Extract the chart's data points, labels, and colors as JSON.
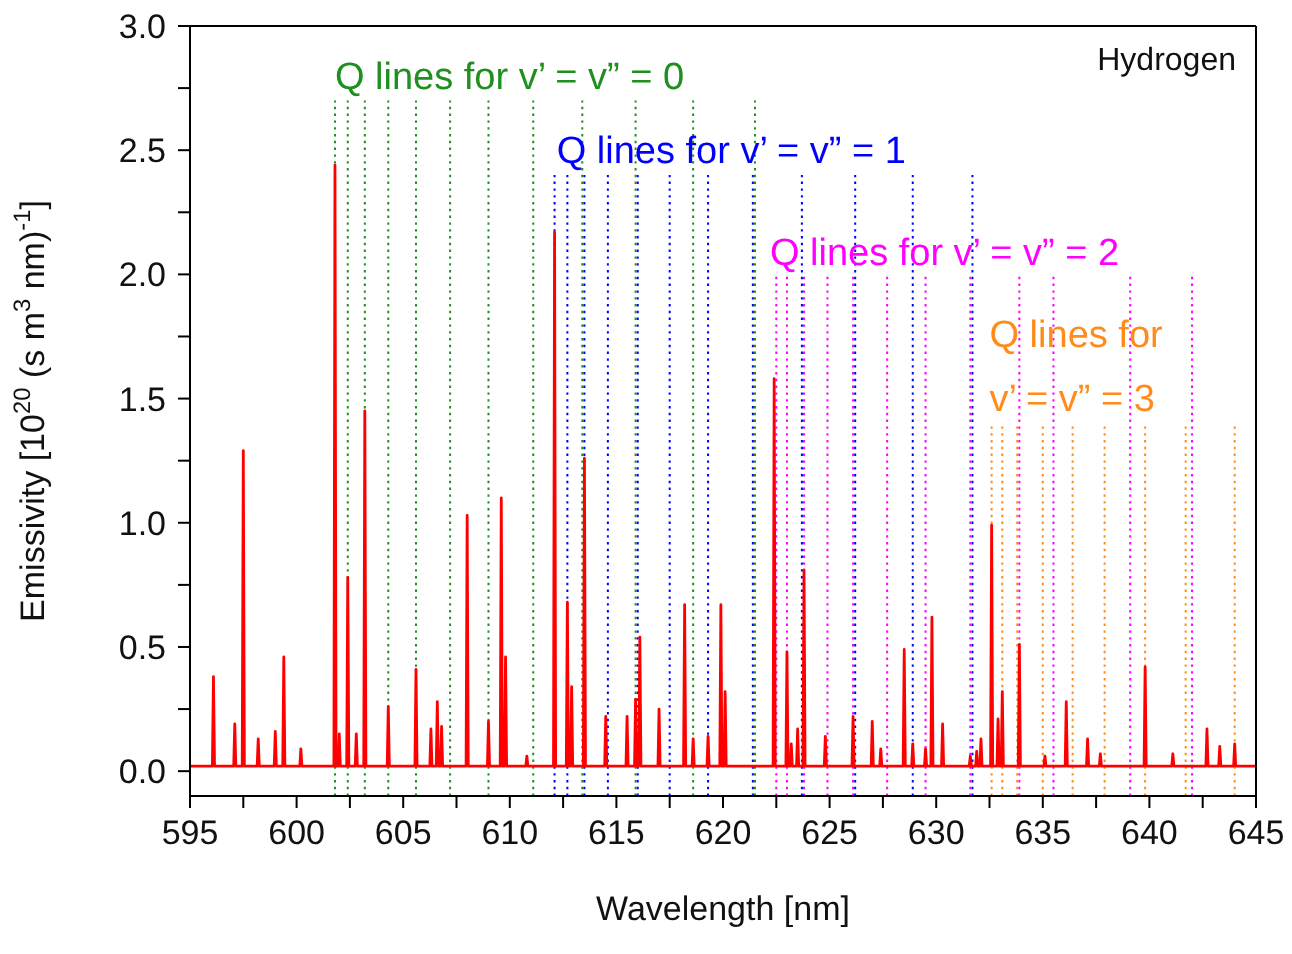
{
  "chart_data": {
    "type": "line",
    "xlabel": "Wavelength [nm]",
    "ylabel": "Emissivity [10$^{20}$ (s m$^{3}$ nm)$^{-1}$]",
    "xlim": [
      595,
      645
    ],
    "xticks": [
      595,
      {
        "value": 597.5,
        "label": null
      },
      600,
      {
        "value": 602.5,
        "label": null
      },
      605,
      {
        "value": 607.5,
        "label": null
      },
      610,
      {
        "value": 612.5,
        "label": null
      },
      615,
      {
        "value": 617.5,
        "label": null
      },
      620,
      {
        "value": 622.5,
        "label": null
      },
      625,
      {
        "value": 627.5,
        "label": null
      },
      630,
      {
        "value": 632.5,
        "label": null
      },
      635,
      {
        "value": 637.5,
        "label": null
      },
      640,
      {
        "value": 642.5,
        "label": null
      },
      645
    ],
    "ylim": [
      -0.1,
      3.0
    ],
    "yticks": [
      {
        "value": 0,
        "label": "0.0"
      },
      {
        "value": 0.25,
        "label": null
      },
      {
        "value": 0.5,
        "label": "0.5"
      },
      {
        "value": 0.75,
        "label": null
      },
      {
        "value": 1,
        "label": "1.0"
      },
      {
        "value": 1.25,
        "label": null
      },
      {
        "value": 1.5,
        "label": "1.5"
      },
      {
        "value": 1.75,
        "label": null
      },
      {
        "value": 2,
        "label": "2.0"
      },
      {
        "value": 2.25,
        "label": null
      },
      {
        "value": 2.5,
        "label": "2.5"
      },
      {
        "value": 2.75,
        "label": null
      },
      {
        "value": 3,
        "label": "3.0"
      }
    ],
    "annotations": [
      "Hydrogen",
      {
        "text": "Q lines for v’ = v” = 0",
        "x": 601.8,
        "y": 2.7
      },
      {
        "text": "Q lines for v’ = v” = 1",
        "x": 612.2,
        "y": 2.4
      },
      {
        "text": "Q lines for v’ = v” = 2",
        "x": 622.2,
        "y": 1.99
      },
      {
        "text": "Q lines for\nv’ = v” = 3",
        "x": 632.5,
        "y": 1.4
      }
    ],
    "ref_lines": [
      {
        "axis": "x",
        "value": 601.8,
        "label": null,
        "color": "#1f8f1f",
        "line_style": "dotted"
      },
      {
        "axis": "x",
        "value": 602.4,
        "label": null,
        "color": "#1f8f1f",
        "line_style": "dotted"
      },
      {
        "axis": "x",
        "value": 603.2,
        "label": null,
        "color": "#1f8f1f",
        "line_style": "dotted"
      },
      {
        "axis": "x",
        "value": 604.3,
        "label": null,
        "color": "#1f8f1f",
        "line_style": "dotted"
      },
      {
        "axis": "x",
        "value": 605.6,
        "label": null,
        "color": "#1f8f1f",
        "line_style": "dotted"
      },
      {
        "axis": "x",
        "value": 607.2,
        "label": null,
        "color": "#1f8f1f",
        "line_style": "dotted"
      },
      {
        "axis": "x",
        "value": 609.0,
        "label": null,
        "color": "#1f8f1f",
        "line_style": "dotted"
      },
      {
        "axis": "x",
        "value": 611.1,
        "label": null,
        "color": "#1f8f1f",
        "line_style": "dotted"
      },
      {
        "axis": "x",
        "value": 613.4,
        "label": null,
        "color": "#1f8f1f",
        "line_style": "dotted"
      },
      {
        "axis": "x",
        "value": 615.9,
        "label": null,
        "color": "#1f8f1f",
        "line_style": "dotted"
      },
      {
        "axis": "x",
        "value": 618.6,
        "label": null,
        "color": "#1f8f1f",
        "line_style": "dotted"
      },
      {
        "axis": "x",
        "value": 621.5,
        "label": null,
        "color": "#1f8f1f",
        "line_style": "dotted"
      },
      {
        "axis": "x",
        "value": 612.1,
        "label": null,
        "color": "#0000ff",
        "line_style": "dotted"
      },
      {
        "axis": "x",
        "value": 612.7,
        "label": null,
        "color": "#0000ff",
        "line_style": "dotted"
      },
      {
        "axis": "x",
        "value": 613.5,
        "label": null,
        "color": "#0000ff",
        "line_style": "dotted"
      },
      {
        "axis": "x",
        "value": 614.6,
        "label": null,
        "color": "#0000ff",
        "line_style": "dotted"
      },
      {
        "axis": "x",
        "value": 616.0,
        "label": null,
        "color": "#0000ff",
        "line_style": "dotted"
      },
      {
        "axis": "x",
        "value": 617.5,
        "label": null,
        "color": "#0000ff",
        "line_style": "dotted"
      },
      {
        "axis": "x",
        "value": 619.3,
        "label": null,
        "color": "#0000ff",
        "line_style": "dotted"
      },
      {
        "axis": "x",
        "value": 621.4,
        "label": null,
        "color": "#0000ff",
        "line_style": "dotted"
      },
      {
        "axis": "x",
        "value": 623.7,
        "label": null,
        "color": "#0000ff",
        "line_style": "dotted"
      },
      {
        "axis": "x",
        "value": 626.2,
        "label": null,
        "color": "#0000ff",
        "line_style": "dotted"
      },
      {
        "axis": "x",
        "value": 628.9,
        "label": null,
        "color": "#0000ff",
        "line_style": "dotted"
      },
      {
        "axis": "x",
        "value": 631.7,
        "label": null,
        "color": "#0000ff",
        "line_style": "dotted"
      },
      {
        "axis": "x",
        "value": 622.5,
        "label": null,
        "color": "#ff00ff",
        "line_style": "dotted"
      },
      {
        "axis": "x",
        "value": 623.0,
        "label": null,
        "color": "#ff00ff",
        "line_style": "dotted"
      },
      {
        "axis": "x",
        "value": 623.8,
        "label": null,
        "color": "#ff00ff",
        "line_style": "dotted"
      },
      {
        "axis": "x",
        "value": 624.9,
        "label": null,
        "color": "#ff00ff",
        "line_style": "dotted"
      },
      {
        "axis": "x",
        "value": 626.1,
        "label": null,
        "color": "#ff00ff",
        "line_style": "dotted"
      },
      {
        "axis": "x",
        "value": 627.7,
        "label": null,
        "color": "#ff00ff",
        "line_style": "dotted"
      },
      {
        "axis": "x",
        "value": 629.5,
        "label": null,
        "color": "#ff00ff",
        "line_style": "dotted"
      },
      {
        "axis": "x",
        "value": 631.6,
        "label": null,
        "color": "#ff00ff",
        "line_style": "dotted"
      },
      {
        "axis": "x",
        "value": 633.9,
        "label": null,
        "color": "#ff00ff",
        "line_style": "dotted"
      },
      {
        "axis": "x",
        "value": 635.5,
        "label": null,
        "color": "#ff00ff",
        "line_style": "dotted"
      },
      {
        "axis": "x",
        "value": 639.1,
        "label": null,
        "color": "#ff00ff",
        "line_style": "dotted"
      },
      {
        "axis": "x",
        "value": 642.0,
        "label": null,
        "color": "#ff00ff",
        "line_style": "dotted"
      },
      {
        "axis": "x",
        "value": 632.6,
        "label": null,
        "color": "#ff8c1a",
        "line_style": "dotted"
      },
      {
        "axis": "x",
        "value": 633.1,
        "label": null,
        "color": "#ff8c1a",
        "line_style": "dotted"
      },
      {
        "axis": "x",
        "value": 633.8,
        "label": null,
        "color": "#ff8c1a",
        "line_style": "dotted"
      },
      {
        "axis": "x",
        "value": 635.0,
        "label": null,
        "color": "#ff8c1a",
        "line_style": "dotted"
      },
      {
        "axis": "x",
        "value": 636.4,
        "label": null,
        "color": "#ff8c1a",
        "line_style": "dotted"
      },
      {
        "axis": "x",
        "value": 637.9,
        "label": null,
        "color": "#ff8c1a",
        "line_style": "dotted"
      },
      {
        "axis": "x",
        "value": 639.8,
        "label": null,
        "color": "#ff8c1a",
        "line_style": "dotted"
      },
      {
        "axis": "x",
        "value": 641.7,
        "label": null,
        "color": "#ff8c1a",
        "line_style": "dotted"
      },
      {
        "axis": "x",
        "value": 644.0,
        "label": null,
        "color": "#ff8c1a",
        "line_style": "dotted"
      }
    ],
    "series": [
      {
        "color": "#ff0000",
        "x": [
          595,
          596.05,
          596.1,
          596.15,
          597.05,
          597.1,
          597.15,
          597.45,
          597.5,
          597.55,
          598.15,
          598.2,
          598.25,
          598.95,
          599,
          599.05,
          599.35,
          599.4,
          599.45,
          600.15,
          600.2,
          600.25,
          601.75,
          601.8,
          601.85,
          601.95,
          602,
          602.05,
          602.35,
          602.4,
          602.45,
          602.75,
          602.8,
          602.85,
          603.15,
          603.2,
          603.25,
          604.25,
          604.3,
          604.35,
          605.55,
          605.6,
          605.65,
          606.25,
          606.3,
          606.35,
          606.55,
          606.6,
          606.65,
          606.75,
          606.8,
          606.85,
          607.95,
          608,
          608.05,
          608.95,
          609,
          609.05,
          609.55,
          609.6,
          609.65,
          609.75,
          609.8,
          609.85,
          610.75,
          610.8,
          610.85,
          612.05,
          612.1,
          612.15,
          612.65,
          612.7,
          612.75,
          612.85,
          612.9,
          612.95,
          613.45,
          613.5,
          613.55,
          614.45,
          614.5,
          614.55,
          615.45,
          615.5,
          615.55,
          615.85,
          615.9,
          615.95,
          616.05,
          616.1,
          616.15,
          616.95,
          617,
          617.05,
          618.15,
          618.2,
          618.25,
          618.55,
          618.6,
          618.65,
          619.25,
          619.3,
          619.35,
          619.85,
          619.9,
          619.95,
          620.05,
          620.1,
          620.15,
          622.35,
          622.4,
          622.45,
          622.95,
          623,
          623.05,
          623.15,
          623.2,
          623.25,
          623.45,
          623.5,
          623.55,
          623.75,
          623.8,
          623.85,
          624.75,
          624.8,
          624.85,
          626.05,
          626.1,
          626.15,
          626.95,
          627,
          627.05,
          627.35,
          627.4,
          627.45,
          628.45,
          628.5,
          628.55,
          628.85,
          628.9,
          628.95,
          629.45,
          629.5,
          629.55,
          629.75,
          629.8,
          629.85,
          630.25,
          630.3,
          630.35,
          631.55,
          631.6,
          631.65,
          631.85,
          631.9,
          631.95,
          632.05,
          632.1,
          632.15,
          632.55,
          632.6,
          632.65,
          632.85,
          632.9,
          632.95,
          633.05,
          633.1,
          633.15,
          633.85,
          633.9,
          633.95,
          635.05,
          635.1,
          635.15,
          636.05,
          636.1,
          636.15,
          637.05,
          637.1,
          637.15,
          637.65,
          637.7,
          637.75,
          639.75,
          639.8,
          639.85,
          641.05,
          641.1,
          641.15,
          642.65,
          642.7,
          642.75,
          643.25,
          643.3,
          643.35,
          643.95,
          644,
          644.05,
          645
        ],
        "values": [
          0.02,
          0.02,
          0.38,
          0.02,
          0.02,
          0.19,
          0.02,
          0.02,
          1.29,
          0.02,
          0.02,
          0.13,
          0.02,
          0.02,
          0.16,
          0.02,
          0.02,
          0.46,
          0.02,
          0.02,
          0.09,
          0.02,
          0.02,
          2.44,
          0.02,
          0.02,
          0.15,
          0.02,
          0.02,
          0.78,
          0.02,
          0.02,
          0.15,
          0.02,
          0.02,
          1.45,
          0.02,
          0.02,
          0.26,
          0.02,
          0.02,
          0.41,
          0.02,
          0.02,
          0.17,
          0.02,
          0.02,
          0.28,
          0.02,
          0.02,
          0.18,
          0.02,
          0.02,
          1.03,
          0.02,
          0.02,
          0.2,
          0.02,
          0.02,
          1.1,
          0.02,
          0.02,
          0.46,
          0.02,
          0.02,
          0.06,
          0.02,
          0.02,
          2.17,
          0.02,
          0.02,
          0.68,
          0.02,
          0.02,
          0.34,
          0.02,
          0.02,
          1.26,
          0.02,
          0.02,
          0.22,
          0.02,
          0.02,
          0.22,
          0.02,
          0.02,
          0.29,
          0.02,
          0.02,
          0.54,
          0.02,
          0.02,
          0.25,
          0.02,
          0.02,
          0.67,
          0.02,
          0.02,
          0.13,
          0.02,
          0.02,
          0.14,
          0.02,
          0.02,
          0.67,
          0.02,
          0.02,
          0.32,
          0.02,
          0.02,
          1.58,
          0.02,
          0.02,
          0.48,
          0.02,
          0.02,
          0.11,
          0.02,
          0.02,
          0.17,
          0.02,
          0.02,
          0.81,
          0.02,
          0.02,
          0.14,
          0.02,
          0.02,
          0.22,
          0.02,
          0.02,
          0.2,
          0.02,
          0.02,
          0.09,
          0.02,
          0.02,
          0.49,
          0.02,
          0.02,
          0.11,
          0.02,
          0.02,
          0.09,
          0.02,
          0.02,
          0.62,
          0.02,
          0.02,
          0.19,
          0.02,
          0.02,
          0.06,
          0.02,
          0.02,
          0.08,
          0.02,
          0.02,
          0.13,
          0.02,
          0.02,
          0.99,
          0.02,
          0.02,
          0.21,
          0.02,
          0.02,
          0.32,
          0.02,
          0.02,
          0.51,
          0.02,
          0.02,
          0.06,
          0.02,
          0.02,
          0.28,
          0.02,
          0.02,
          0.13,
          0.02,
          0.02,
          0.07,
          0.02,
          0.02,
          0.42,
          0.02,
          0.02,
          0.07,
          0.02,
          0.02,
          0.17,
          0.02,
          0.02,
          0.1,
          0.02,
          0.02,
          0.11,
          0.02,
          0.02
        ]
      }
    ]
  }
}
